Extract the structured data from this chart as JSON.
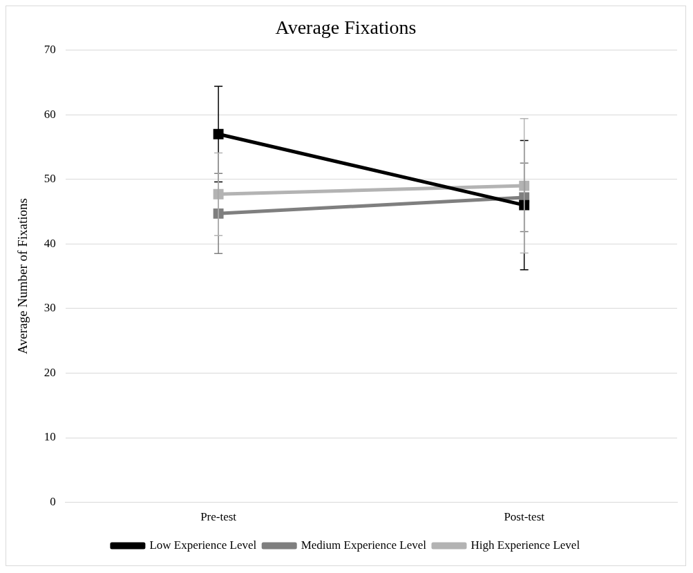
{
  "chart_data": {
    "type": "line",
    "title": "Average Fixations",
    "ylabel": "Average Number of Fixations",
    "categories": [
      "Pre-test",
      "Post-test"
    ],
    "series": [
      {
        "name": "Low Experience Level",
        "color": "#000000",
        "values": [
          57,
          46
        ],
        "errors": [
          7.4,
          10
        ]
      },
      {
        "name": "Medium Experience Level",
        "color": "#7f7f7f",
        "values": [
          44.7,
          47.2
        ],
        "errors": [
          6.2,
          5.3
        ]
      },
      {
        "name": "High Experience Level",
        "color": "#b3b3b3",
        "values": [
          47.7,
          49
        ],
        "errors": [
          6.4,
          10.4
        ]
      }
    ],
    "ylim": [
      0,
      70
    ],
    "yticks": [
      0,
      10,
      20,
      30,
      40,
      50,
      60,
      70
    ],
    "grid": "y",
    "legend": "bottom",
    "marker": "square",
    "line_style": "solid"
  }
}
